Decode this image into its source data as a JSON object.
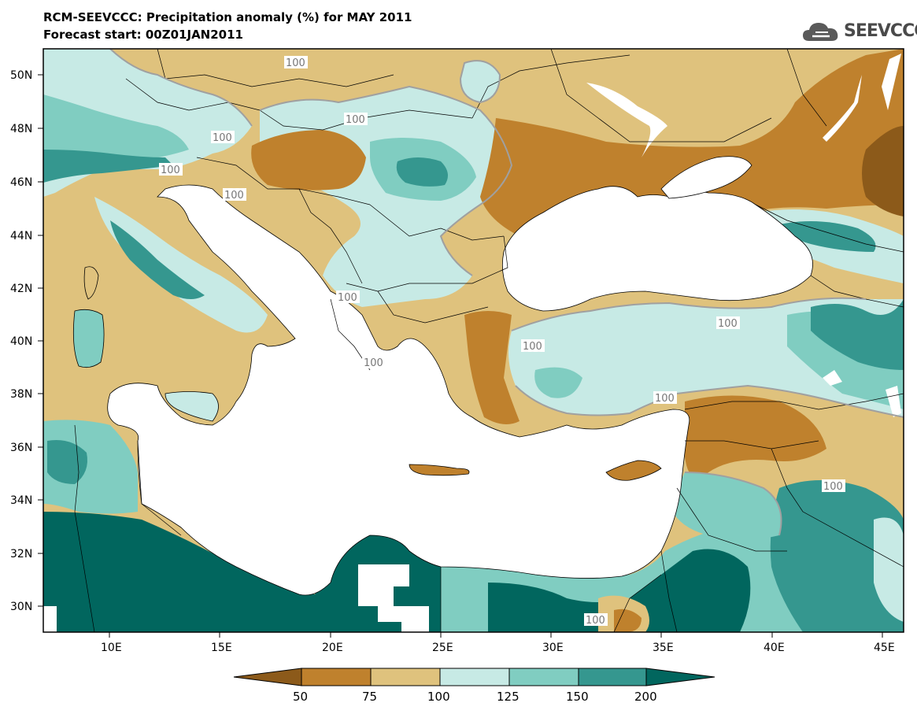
{
  "header": {
    "title": "RCM-SEEVCCC: Precipitation anomaly (%) for MAY 2011",
    "subtitle": "Forecast start: 00Z01JAN2011",
    "logo_text": "SEEVCCC",
    "logo_icon": "cloud-icon"
  },
  "map": {
    "lat_labels": [
      "50N",
      "48N",
      "46N",
      "44N",
      "42N",
      "40N",
      "38N",
      "36N",
      "34N",
      "32N",
      "30N"
    ],
    "lon_labels": [
      "10E",
      "15E",
      "20E",
      "25E",
      "30E",
      "35E",
      "40E",
      "45E"
    ],
    "lat_range": [
      29,
      51
    ],
    "lon_range": [
      7,
      46
    ],
    "contour_label": "100",
    "colors": {
      "below_50": "#8c5a1a",
      "50_75": "#bf812d",
      "75_100": "#dfc27d",
      "100_125": "#c7eae5",
      "125_150": "#80cdc1",
      "150_200": "#35978f",
      "above_200": "#01665e",
      "contour": "#a0a0a0",
      "water": "#ffffff"
    }
  },
  "colorbar": {
    "labels": [
      "50",
      "75",
      "100",
      "125",
      "150",
      "200"
    ],
    "colors": [
      "#8c5a1a",
      "#bf812d",
      "#dfc27d",
      "#c7eae5",
      "#80cdc1",
      "#35978f",
      "#01665e"
    ]
  }
}
